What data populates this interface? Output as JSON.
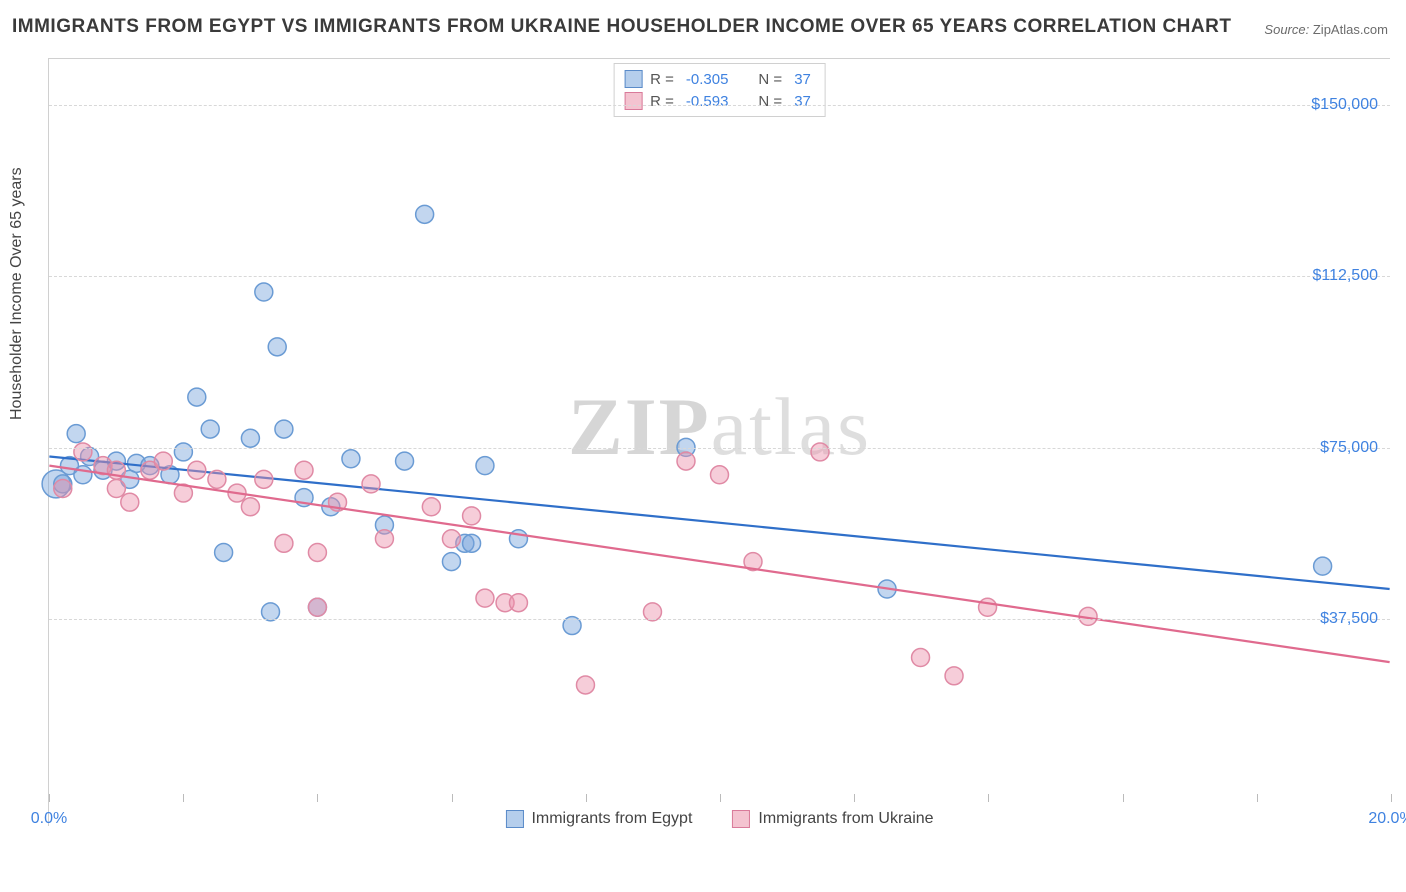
{
  "title": "IMMIGRANTS FROM EGYPT VS IMMIGRANTS FROM UKRAINE HOUSEHOLDER INCOME OVER 65 YEARS CORRELATION CHART",
  "source_label": "Source:",
  "source_value": "ZipAtlas.com",
  "ylabel": "Householder Income Over 65 years",
  "watermark_bold": "ZIP",
  "watermark_rest": "atlas",
  "chart": {
    "type": "scatter",
    "xlim": [
      0,
      20
    ],
    "ylim": [
      0,
      160000
    ],
    "x_unit": "%",
    "y_unit": "$",
    "xtick_step": 2,
    "xtick_labels": {
      "0": "0.0%",
      "20": "20.0%"
    },
    "ytick_step": 37500,
    "ytick_labels": {
      "37500": "$37,500",
      "75000": "$75,000",
      "112500": "$112,500",
      "150000": "$150,000"
    },
    "grid_color": "#d8d8d8",
    "background_color": "#ffffff",
    "marker_radius": 9,
    "marker_stroke_width": 1.5,
    "line_width": 2.2,
    "series": [
      {
        "name": "Immigrants from Egypt",
        "color_fill": "rgba(120,165,220,0.45)",
        "color_stroke": "#6a9bd4",
        "line_color": "#2f6fc9",
        "R": "-0.305",
        "N": "37",
        "trend": {
          "x1": 0,
          "y1": 73000,
          "x2": 20,
          "y2": 44000
        },
        "points": [
          [
            0.1,
            67000,
            14
          ],
          [
            0.2,
            67000
          ],
          [
            0.3,
            71000
          ],
          [
            0.4,
            78000
          ],
          [
            0.5,
            69000
          ],
          [
            0.6,
            73000
          ],
          [
            0.8,
            70000
          ],
          [
            1.0,
            72000
          ],
          [
            1.2,
            68000
          ],
          [
            1.3,
            71500
          ],
          [
            1.5,
            71000
          ],
          [
            1.8,
            69000
          ],
          [
            2.0,
            74000
          ],
          [
            2.2,
            86000
          ],
          [
            2.4,
            79000
          ],
          [
            2.6,
            52000
          ],
          [
            3.0,
            77000
          ],
          [
            3.2,
            109000
          ],
          [
            3.3,
            39000
          ],
          [
            3.4,
            97000
          ],
          [
            3.5,
            79000
          ],
          [
            3.8,
            64000
          ],
          [
            4.0,
            40000
          ],
          [
            4.2,
            62000
          ],
          [
            4.5,
            72500
          ],
          [
            5.0,
            58000
          ],
          [
            5.3,
            72000
          ],
          [
            5.6,
            126000
          ],
          [
            6.0,
            50000
          ],
          [
            6.2,
            54000
          ],
          [
            6.3,
            54000
          ],
          [
            6.5,
            71000
          ],
          [
            7.0,
            55000
          ],
          [
            7.8,
            36000
          ],
          [
            9.5,
            75000
          ],
          [
            12.5,
            44000
          ],
          [
            19.0,
            49000
          ]
        ]
      },
      {
        "name": "Immigrants from Ukraine",
        "color_fill": "rgba(235,145,170,0.45)",
        "color_stroke": "#e08aa5",
        "line_color": "#e06a8e",
        "R": "-0.593",
        "N": "37",
        "trend": {
          "x1": 0,
          "y1": 71000,
          "x2": 20,
          "y2": 28000
        },
        "points": [
          [
            0.2,
            66000
          ],
          [
            0.5,
            74000
          ],
          [
            0.8,
            71000
          ],
          [
            1.0,
            70000
          ],
          [
            1.2,
            63000
          ],
          [
            1.5,
            70000
          ],
          [
            1.7,
            72000
          ],
          [
            2.0,
            65000
          ],
          [
            2.2,
            70000
          ],
          [
            2.5,
            68000
          ],
          [
            2.8,
            65000
          ],
          [
            3.0,
            62000
          ],
          [
            3.2,
            68000
          ],
          [
            3.5,
            54000
          ],
          [
            3.8,
            70000
          ],
          [
            4.0,
            52000
          ],
          [
            4.0,
            40000
          ],
          [
            4.3,
            63000
          ],
          [
            4.8,
            67000
          ],
          [
            5.0,
            55000
          ],
          [
            5.7,
            62000
          ],
          [
            6.0,
            55000
          ],
          [
            6.3,
            60000
          ],
          [
            6.5,
            42000
          ],
          [
            6.8,
            41000
          ],
          [
            7.0,
            41000
          ],
          [
            8.0,
            23000
          ],
          [
            9.0,
            39000
          ],
          [
            9.5,
            72000
          ],
          [
            10.0,
            69000
          ],
          [
            11.5,
            74000
          ],
          [
            13.0,
            29000
          ],
          [
            13.5,
            25000
          ],
          [
            14.0,
            40000
          ],
          [
            15.5,
            38000
          ],
          [
            10.5,
            50000
          ],
          [
            1.0,
            66000
          ]
        ]
      }
    ]
  },
  "legend_top": {
    "r_label": "R =",
    "n_label": "N ="
  }
}
